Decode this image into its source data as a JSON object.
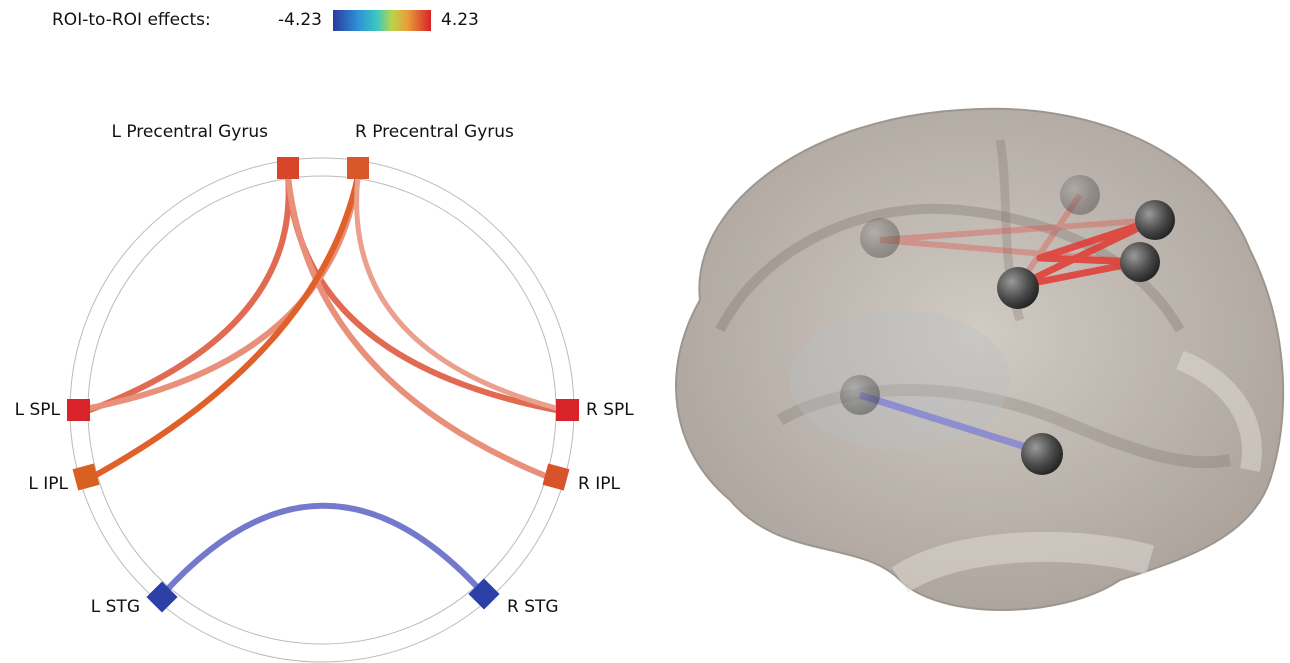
{
  "colorbar": {
    "label": "ROI-to-ROI effects:",
    "min_label": "-4.23",
    "max_label": "4.23"
  },
  "nodes": [
    {
      "label": "L Precentral Gyrus"
    },
    {
      "label": "R Precentral Gyrus"
    },
    {
      "label": "L SPL"
    },
    {
      "label": "R SPL"
    },
    {
      "label": "L IPL"
    },
    {
      "label": "R IPL"
    },
    {
      "label": "L STG"
    },
    {
      "label": "R STG"
    }
  ]
}
